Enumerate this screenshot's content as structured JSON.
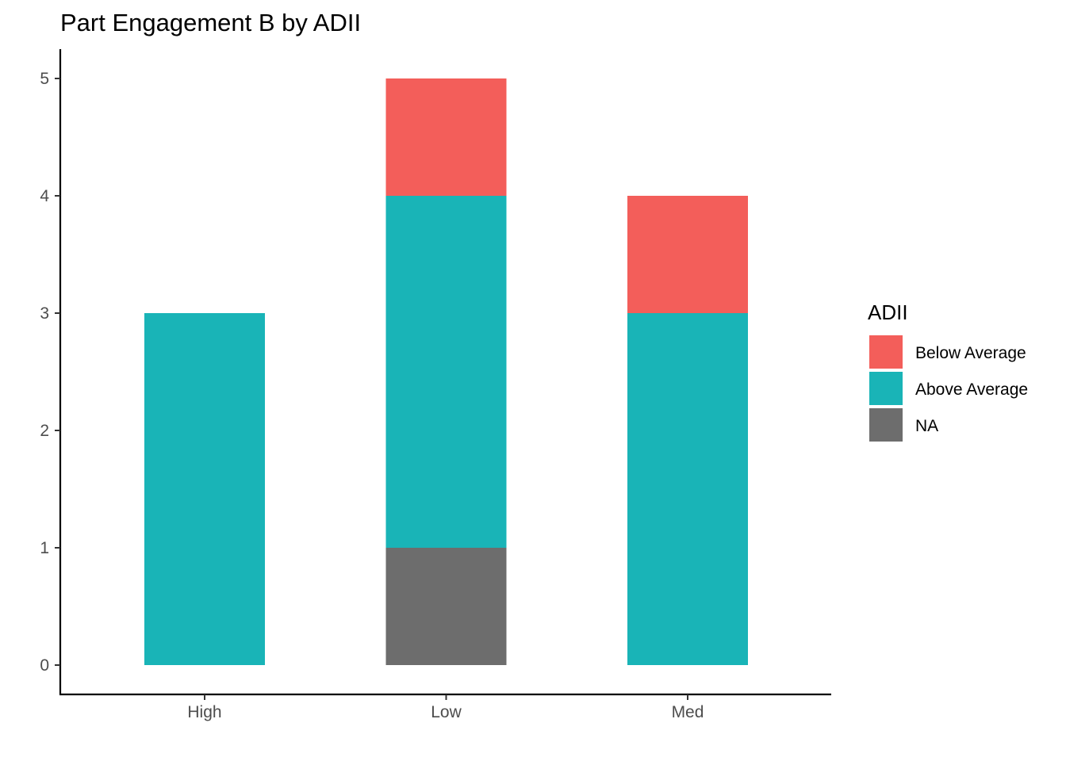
{
  "chart_data": {
    "type": "bar",
    "stacked": true,
    "title": "Part Engagement B by ADII",
    "xlabel": "",
    "ylabel": "",
    "categories": [
      "High",
      "Low",
      "Med"
    ],
    "series": [
      {
        "name": "Below Average",
        "color": "#F35E5A",
        "values": [
          0,
          1,
          1
        ]
      },
      {
        "name": "Above Average",
        "color": "#19B4B7",
        "values": [
          3,
          3,
          3
        ]
      },
      {
        "name": "NA",
        "color": "#6D6D6D",
        "values": [
          0,
          1,
          0
        ]
      }
    ],
    "stack_order_bottom_to_top": [
      "NA",
      "Above Average",
      "Below Average"
    ],
    "ylim": [
      0,
      5
    ],
    "yticks": [
      0,
      1,
      2,
      3,
      4,
      5
    ],
    "grid": false,
    "legend": {
      "title": "ADII",
      "position": "right"
    }
  }
}
